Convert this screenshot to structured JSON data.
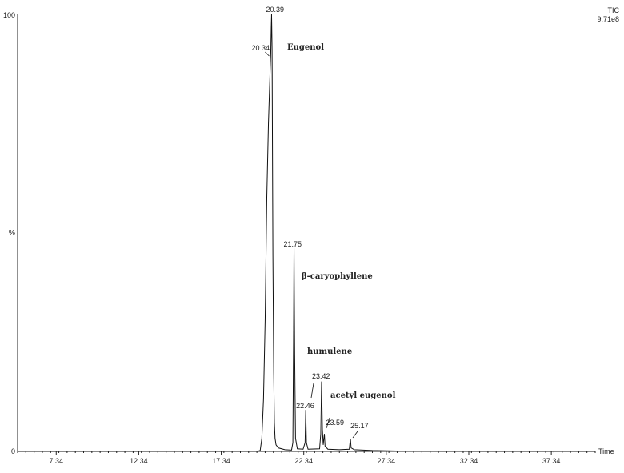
{
  "chart_data": {
    "type": "line",
    "title": "",
    "detector": {
      "label": "TIC",
      "scale": "9.71e8"
    },
    "xlabel": "Time",
    "ylabel": "%",
    "xlim": [
      5.0,
      40.0
    ],
    "ylim": [
      0,
      100
    ],
    "x_ticks": [
      "7.34",
      "12.34",
      "17.34",
      "22.34",
      "27.34",
      "32.34",
      "37.34"
    ],
    "y_ticks": [
      "0",
      "100"
    ],
    "peaks": [
      {
        "rt": 20.39,
        "label": "20.39",
        "height": 100.0
      },
      {
        "rt": 20.34,
        "label": "20.34",
        "height": 91.0
      },
      {
        "rt": 21.75,
        "label": "21.75",
        "height": 46.5
      },
      {
        "rt": 22.46,
        "label": "22.46",
        "height": 9.5
      },
      {
        "rt": 23.42,
        "label": "23.42",
        "height": 16.0
      },
      {
        "rt": 23.59,
        "label": "23.59",
        "height": 4.0
      },
      {
        "rt": 25.17,
        "label": "25.17",
        "height": 2.8
      }
    ],
    "compounds": [
      {
        "name": "Eugenol",
        "rt": 20.39
      },
      {
        "name": "β-caryophyllene",
        "rt": 21.75
      },
      {
        "name": "humulene",
        "rt": 22.46
      },
      {
        "name": "acetyl eugenol",
        "rt": 23.42
      }
    ],
    "trace": [
      [
        5.0,
        0.0
      ],
      [
        19.5,
        0.0
      ],
      [
        19.7,
        0.2
      ],
      [
        19.8,
        3.0
      ],
      [
        19.9,
        12.0
      ],
      [
        20.0,
        30.0
      ],
      [
        20.1,
        58.0
      ],
      [
        20.2,
        75.0
      ],
      [
        20.3,
        87.0
      ],
      [
        20.34,
        91.0
      ],
      [
        20.37,
        97.0
      ],
      [
        20.39,
        100.0
      ],
      [
        20.42,
        92.0
      ],
      [
        20.47,
        45.0
      ],
      [
        20.52,
        18.0
      ],
      [
        20.56,
        6.5
      ],
      [
        20.6,
        3.0
      ],
      [
        20.66,
        1.5
      ],
      [
        20.8,
        0.8
      ],
      [
        21.2,
        0.4
      ],
      [
        21.6,
        0.3
      ],
      [
        21.68,
        2.0
      ],
      [
        21.72,
        25.0
      ],
      [
        21.75,
        46.5
      ],
      [
        21.79,
        22.0
      ],
      [
        21.84,
        3.0
      ],
      [
        21.95,
        0.6
      ],
      [
        22.3,
        0.5
      ],
      [
        22.42,
        2.0
      ],
      [
        22.46,
        9.5
      ],
      [
        22.5,
        2.0
      ],
      [
        22.6,
        0.5
      ],
      [
        23.3,
        0.6
      ],
      [
        23.37,
        4.0
      ],
      [
        23.42,
        16.0
      ],
      [
        23.47,
        5.0
      ],
      [
        23.52,
        1.5
      ],
      [
        23.56,
        3.0
      ],
      [
        23.59,
        4.0
      ],
      [
        23.63,
        1.2
      ],
      [
        23.8,
        0.5
      ],
      [
        24.5,
        0.4
      ],
      [
        25.1,
        0.5
      ],
      [
        25.14,
        2.0
      ],
      [
        25.17,
        2.8
      ],
      [
        25.21,
        0.8
      ],
      [
        25.4,
        0.4
      ],
      [
        26.5,
        0.2
      ],
      [
        28.0,
        0.1
      ],
      [
        30.0,
        0.05
      ],
      [
        40.0,
        0.0
      ]
    ]
  }
}
